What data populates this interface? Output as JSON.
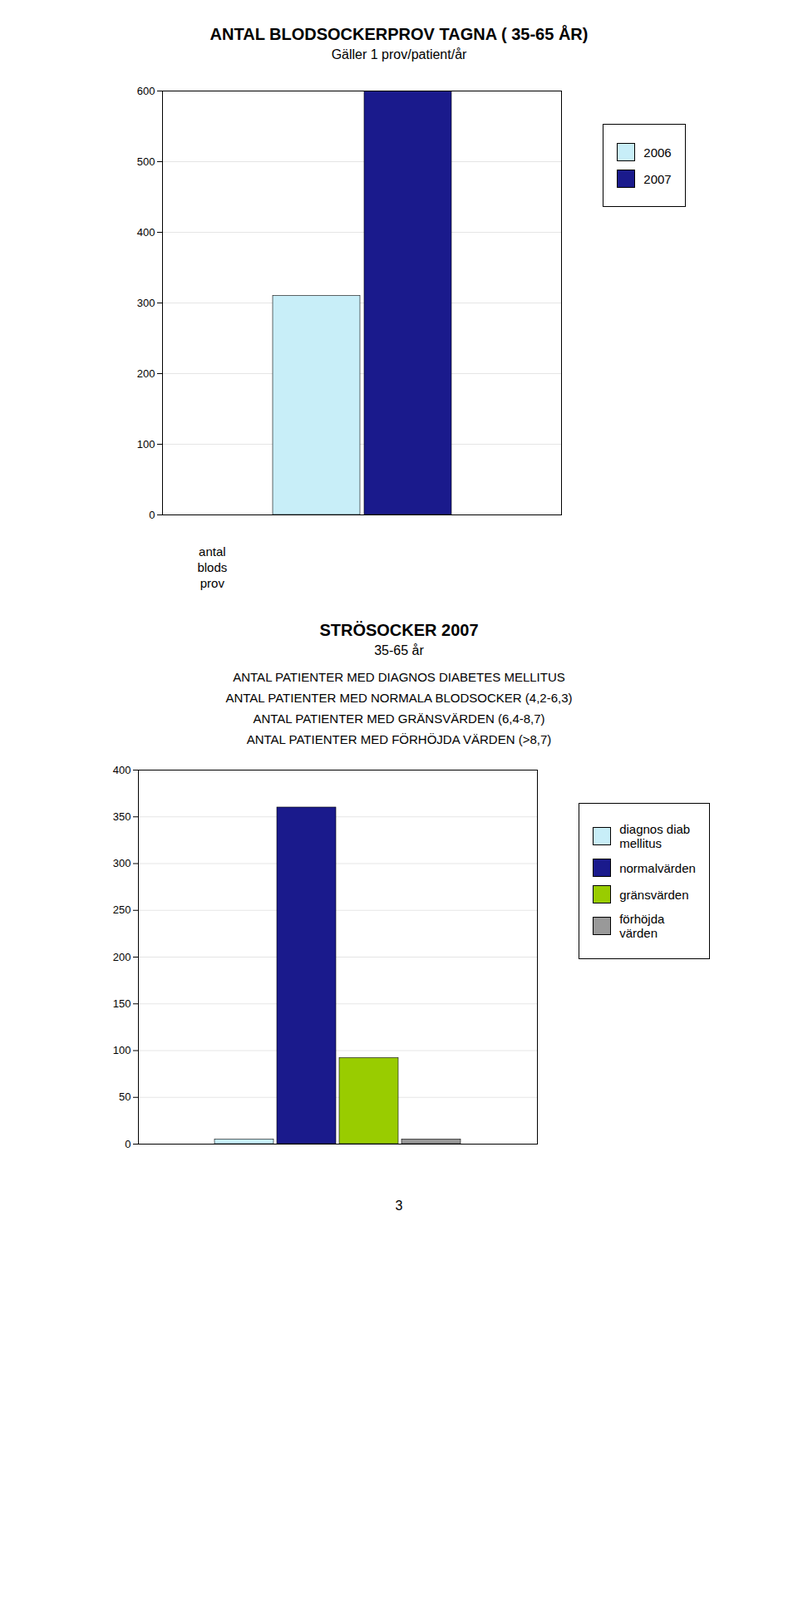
{
  "chart_data": [
    {
      "type": "bar",
      "title": "ANTAL BLODSOCKERPROV TAGNA ( 35-65 ÅR)",
      "subtitle": "Gäller 1 prov/patient/år",
      "xlabel": "antal\nblods\nprov",
      "categories": [
        null
      ],
      "series": [
        {
          "name": "2006",
          "color": "#c8eef8",
          "values": [
            310
          ]
        },
        {
          "name": "2007",
          "color": "#1a1a8c",
          "values": [
            600
          ]
        }
      ],
      "ylim": [
        0,
        600
      ],
      "yticks": [
        0,
        100,
        200,
        300,
        400,
        500,
        600
      ],
      "grid": true,
      "legend": "right",
      "tick_labels": "y"
    },
    {
      "type": "bar",
      "title": "STRÖSOCKER 2007",
      "subtitle": "35-65 år",
      "annotations": [
        "ANTAL PATIENTER MED DIAGNOS DIABETES MELLITUS",
        "ANTAL PATIENTER MED NORMALA BLODSOCKER (4,2-6,3)",
        "ANTAL PATIENTER MED GRÄNSVÄRDEN (6,4-8,7)",
        "ANTAL PATIENTER MED FÖRHÖJDA VÄRDEN (>8,7)"
      ],
      "categories": [
        null
      ],
      "series": [
        {
          "name": "diagnos diab\nmellitus",
          "color": "#c8eef8",
          "values": [
            5
          ]
        },
        {
          "name": "normalvärden",
          "color": "#1a1a8c",
          "values": [
            360
          ]
        },
        {
          "name": "gränsvärden",
          "color": "#99cc00",
          "values": [
            92
          ]
        },
        {
          "name": "förhöjda\nvärden",
          "color": "#999999",
          "values": [
            5
          ]
        }
      ],
      "ylim": [
        0,
        400
      ],
      "yticks": [
        0,
        50,
        100,
        150,
        200,
        250,
        300,
        350,
        400
      ],
      "grid": true,
      "legend": "right",
      "tick_labels": "y"
    }
  ],
  "page_number": "3"
}
